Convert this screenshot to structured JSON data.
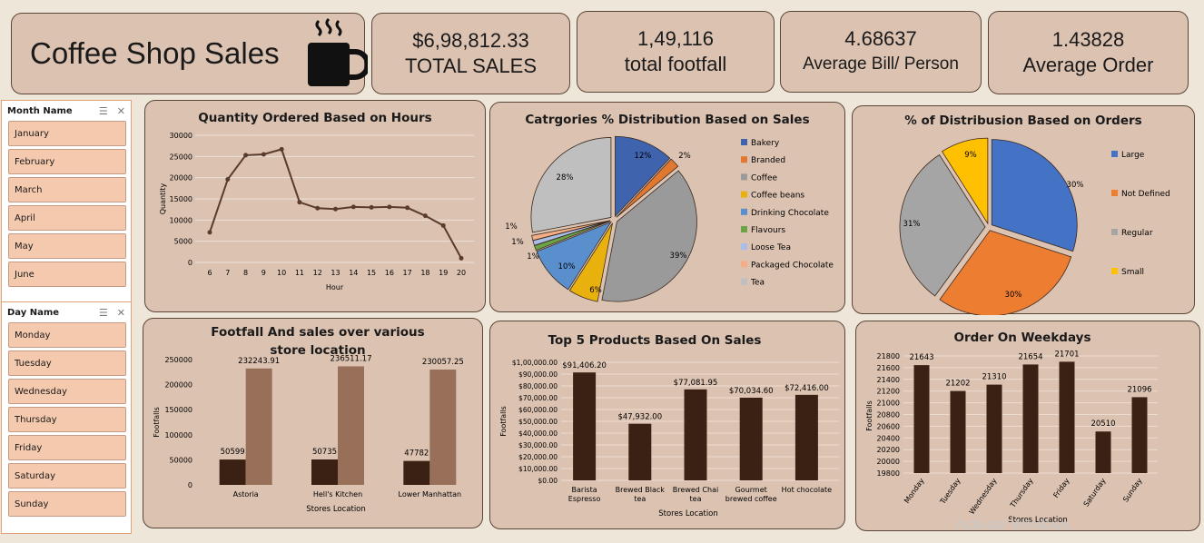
{
  "header": {
    "title": "Coffee Shop Sales",
    "kpis": [
      {
        "value": "$6,98,812.33",
        "label": "TOTAL SALES"
      },
      {
        "value": "1,49,116",
        "label": "total footfall"
      },
      {
        "value": "4.68637",
        "label": "Average Bill/ Person"
      },
      {
        "value": "1.43828",
        "label": "Average Order"
      }
    ]
  },
  "slicers": {
    "month": {
      "title": "Month Name",
      "items": [
        "January",
        "February",
        "March",
        "April",
        "May",
        "June"
      ]
    },
    "day": {
      "title": "Day Name",
      "items": [
        "Monday",
        "Tuesday",
        "Wednesday",
        "Thursday",
        "Friday",
        "Saturday",
        "Sunday"
      ]
    }
  },
  "watermark": "Activate Windows",
  "colors": {
    "bar_dark": "#3a2113",
    "bar_light": "#98705a",
    "line": "#5b3b2a",
    "card": "#dcc2b1"
  },
  "chart_data": [
    {
      "id": "hours",
      "type": "line",
      "title": "Quantity Ordered Based on Hours",
      "xlabel": "Hour",
      "ylabel": "Quantity",
      "x": [
        6,
        7,
        8,
        9,
        10,
        11,
        12,
        13,
        14,
        15,
        16,
        17,
        18,
        19,
        20
      ],
      "values": [
        7100,
        19600,
        25300,
        25500,
        26700,
        14200,
        12800,
        12600,
        13100,
        13000,
        13100,
        12900,
        11000,
        8700,
        1000
      ],
      "ylim": [
        0,
        30000
      ],
      "yticks": [
        "0",
        "5000",
        "10000",
        "15000",
        "20000",
        "25000",
        "30000"
      ],
      "grid": true
    },
    {
      "id": "categories",
      "type": "pie",
      "title": "Catrgories % Distribution Based on Sales",
      "labels": [
        "Bakery",
        "Branded",
        "Coffee",
        "Coffee beans",
        "Drinking Chocolate",
        "Flavours",
        "Loose Tea",
        "Packaged Chocolate",
        "Tea"
      ],
      "values": [
        12,
        2,
        39,
        6,
        10,
        1,
        1,
        1,
        28
      ],
      "value_labels": [
        "12%",
        "2%",
        "39%",
        "6%",
        "10%",
        "1%",
        "1%",
        "1%",
        "28%"
      ],
      "colors": [
        "#3f63ad",
        "#e2782f",
        "#9a9a9a",
        "#e8b10e",
        "#5a8fce",
        "#6aa447",
        "#a9bde6",
        "#f3ae86",
        "#bfbfbf"
      ],
      "legend": "right"
    },
    {
      "id": "sizes",
      "type": "pie",
      "title": "% of Distribusion Based on Orders",
      "labels": [
        "Large",
        "Not Defined",
        "Regular",
        "Small"
      ],
      "values": [
        30,
        30,
        31,
        9
      ],
      "value_labels": [
        "30%",
        "30%",
        "31%",
        "9%"
      ],
      "colors": [
        "#4472c4",
        "#ed7d31",
        "#a5a5a5",
        "#ffc000"
      ],
      "legend": "right"
    },
    {
      "id": "stores",
      "type": "bar",
      "title": "Footfall And sales over various store location",
      "xlabel": "Stores Location",
      "ylabel": "Footfalls",
      "categories": [
        "Astoria",
        "Hell's Kitchen",
        "Lower Manhattan"
      ],
      "series": [
        {
          "values": [
            50599,
            50735,
            47782
          ],
          "labels": [
            "50599",
            "50735",
            "47782"
          ]
        },
        {
          "values": [
            232243.91,
            236511.17,
            230057.25
          ],
          "labels": [
            "232243.91",
            "236511.17",
            "230057.25"
          ]
        }
      ],
      "ylim": [
        0,
        250000
      ],
      "yticks": [
        "0",
        "50000",
        "100000",
        "150000",
        "200000",
        "250000"
      ]
    },
    {
      "id": "products",
      "type": "bar",
      "title": "Top 5 Products Based On Sales",
      "xlabel": "Stores Location",
      "ylabel": "Footfalls",
      "categories": [
        [
          "Barista",
          "Espresso"
        ],
        [
          "Brewed Black",
          "tea"
        ],
        [
          "Brewed Chai",
          "tea"
        ],
        [
          "Gourmet",
          "brewed coffee"
        ],
        [
          "Hot chocolate"
        ]
      ],
      "values": [
        91406.2,
        47932.0,
        77081.95,
        70034.6,
        72416.0
      ],
      "value_labels": [
        "$91,406.20",
        "$47,932.00",
        "$77,081.95",
        "$70,034.60",
        "$72,416.00"
      ],
      "ylim": [
        0,
        100000
      ],
      "yticks": [
        "$0.00",
        "$10,000.00",
        "$20,000.00",
        "$30,000.00",
        "$40,000.00",
        "$50,000.00",
        "$60,000.00",
        "$70,000.00",
        "$80,000.00",
        "$90,000.00",
        "$1,00,000.00"
      ],
      "grid": true
    },
    {
      "id": "weekdays",
      "type": "bar",
      "title": "Order On Weekdays",
      "xlabel": "Stores Location",
      "ylabel": "Footfalls",
      "categories": [
        "Monday",
        "Tuesday",
        "Wednesday",
        "Thursday",
        "Friday",
        "Saturday",
        "Sunday"
      ],
      "values": [
        21643,
        21202,
        21310,
        21654,
        21701,
        20510,
        21096
      ],
      "value_labels": [
        "21643",
        "21202",
        "21310",
        "21654",
        "21701",
        "20510",
        "21096"
      ],
      "ylim": [
        19800,
        21800
      ],
      "yticks": [
        "19800",
        "20000",
        "20200",
        "20400",
        "20600",
        "20800",
        "21000",
        "21200",
        "21400",
        "21600",
        "21800"
      ],
      "grid": true
    }
  ]
}
